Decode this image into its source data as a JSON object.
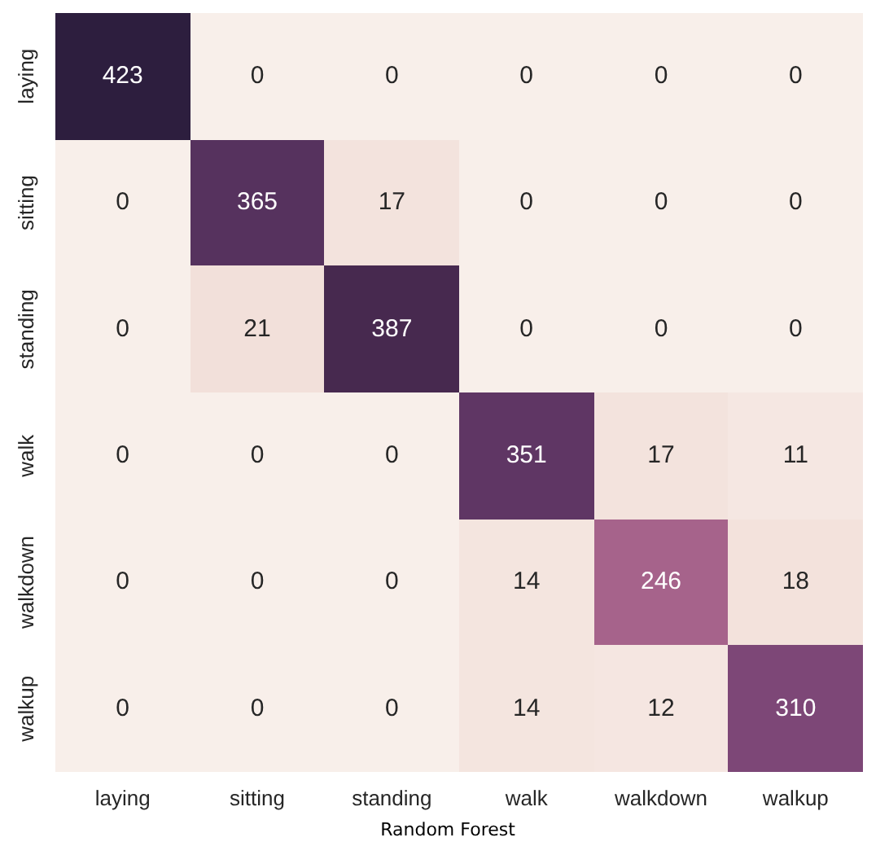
{
  "chart_data": {
    "type": "heatmap",
    "xlabel": "Random Forest",
    "categories": [
      "laying",
      "sitting",
      "standing",
      "walk",
      "walkdown",
      "walkup"
    ],
    "y_categories": [
      "laying",
      "sitting",
      "standing",
      "walk",
      "walkdown",
      "walkup"
    ],
    "cells": [
      [
        423,
        0,
        0,
        0,
        0,
        0
      ],
      [
        0,
        365,
        17,
        0,
        0,
        0
      ],
      [
        0,
        21,
        387,
        0,
        0,
        0
      ],
      [
        0,
        0,
        0,
        351,
        17,
        11
      ],
      [
        0,
        0,
        0,
        14,
        246,
        18
      ],
      [
        0,
        0,
        0,
        14,
        12,
        310
      ]
    ],
    "data_labels": true
  }
}
